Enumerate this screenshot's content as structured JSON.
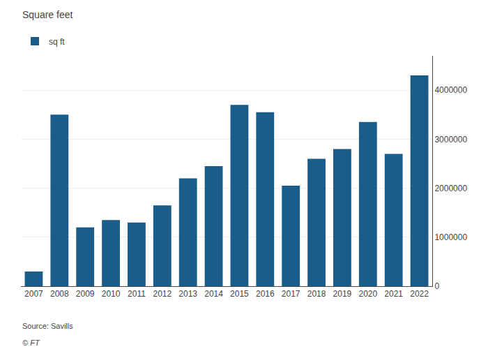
{
  "chart_data": {
    "type": "bar",
    "ylabel": "Square feet",
    "categories": [
      "2007",
      "2008",
      "2009",
      "2010",
      "2011",
      "2012",
      "2013",
      "2014",
      "2015",
      "2016",
      "2017",
      "2018",
      "2019",
      "2020",
      "2021",
      "2022"
    ],
    "series": [
      {
        "name": "sq ft",
        "color": "#1a5c8a",
        "values": [
          300000,
          3500000,
          1200000,
          1350000,
          1300000,
          1650000,
          2200000,
          2450000,
          3700000,
          3550000,
          2050000,
          2600000,
          2800000,
          3350000,
          2700000,
          4300000
        ]
      }
    ],
    "ylim": [
      0,
      4700000
    ],
    "yticks": [
      0,
      1000000,
      2000000,
      3000000,
      4000000
    ],
    "grid": true,
    "legend": "upper left",
    "annotations": [
      "Source: Savills",
      "© FT"
    ]
  }
}
